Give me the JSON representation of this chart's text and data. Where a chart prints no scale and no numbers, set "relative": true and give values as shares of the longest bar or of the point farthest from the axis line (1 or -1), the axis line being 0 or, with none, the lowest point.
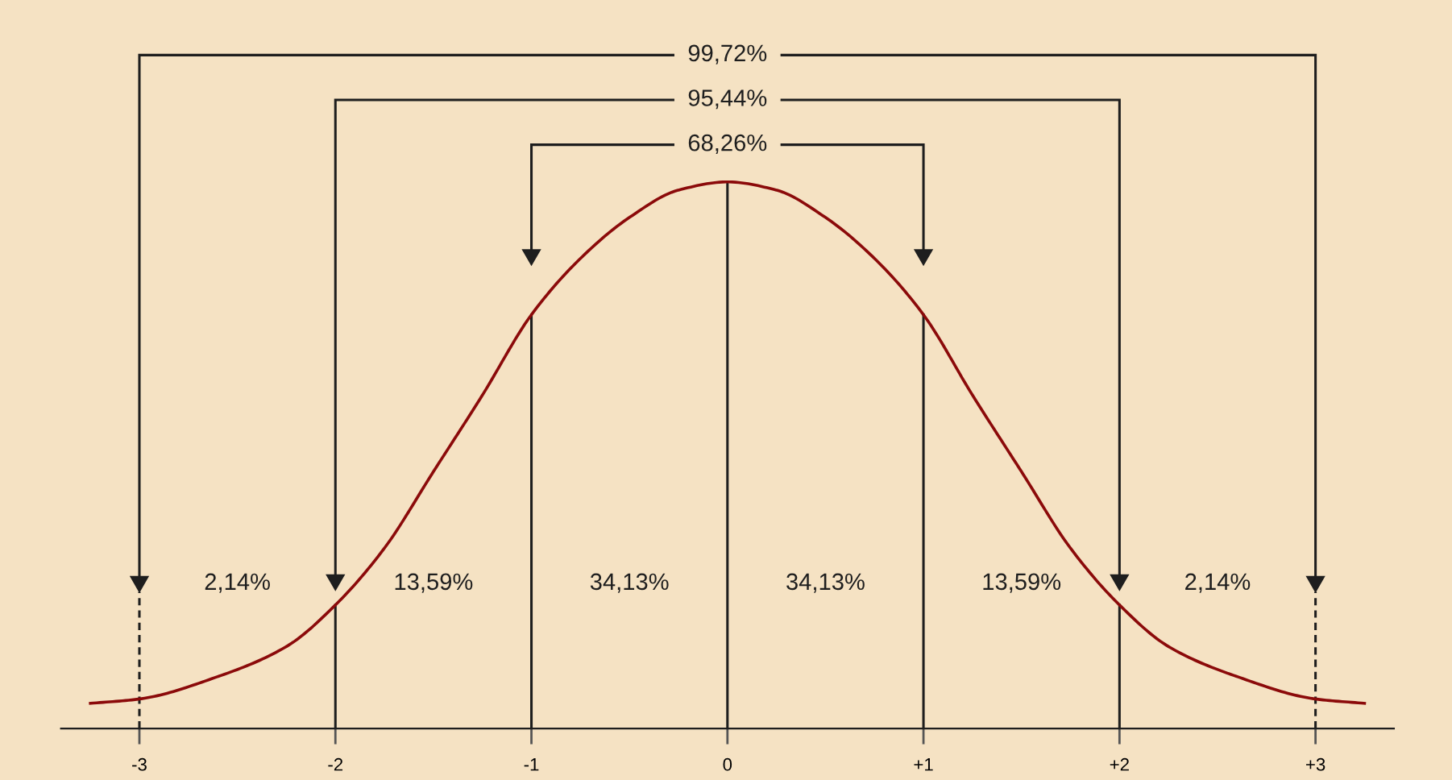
{
  "chart_data": {
    "type": "line",
    "relative": true,
    "x": [
      -3.25,
      -3,
      -2.6,
      -2.25,
      -2,
      -1.75,
      -1.5,
      -1.25,
      -1,
      -0.75,
      -0.5,
      -0.25,
      0,
      0.25,
      0.5,
      0.75,
      1,
      1.25,
      1.5,
      1.75,
      2,
      2.25,
      2.6,
      3,
      3.25
    ],
    "series": [
      {
        "color": "#8b0a0a",
        "values": [
          0.046,
          0.054,
          0.095,
          0.15,
          0.226,
          0.33,
          0.47,
          0.61,
          0.757,
          0.86,
          0.935,
          0.985,
          1,
          0.985,
          0.935,
          0.86,
          0.757,
          0.61,
          0.47,
          0.33,
          0.226,
          0.15,
          0.095,
          0.054,
          0.046
        ]
      }
    ],
    "xlim": [
      -3.4,
      3.4
    ],
    "xticks": [
      -3,
      -2,
      -1,
      0,
      {
        "value": 1,
        "label": "+1"
      },
      {
        "value": 2,
        "label": "+2"
      },
      {
        "value": 3,
        "label": "+3"
      }
    ],
    "ref_lines": [
      {
        "axis": "x",
        "value": -3,
        "line_style": "dashed"
      },
      {
        "axis": "x",
        "value": 3,
        "line_style": "dashed"
      }
    ],
    "annotations": [
      "99,72%",
      "95,44%",
      "68,26%",
      "2,14%",
      "13,59%",
      "34,13%",
      "34,13%",
      "13,59%",
      "2,14%"
    ],
    "grid": "x",
    "legend": false
  }
}
